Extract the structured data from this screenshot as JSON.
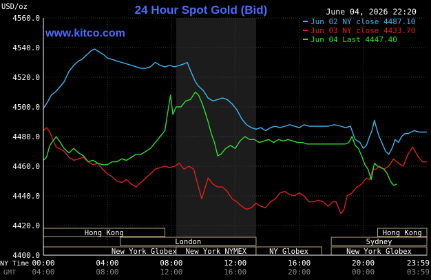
{
  "chart_data": {
    "type": "line",
    "title": "24 Hour Spot Gold (Bid)",
    "watermark": "www.kitco.com",
    "timestamp": "June 04, 2026 22:20",
    "ylabel": "USD/oz",
    "ylim": [
      4400,
      4560
    ],
    "y_ticks": [
      "4560.0",
      "4540.0",
      "4520.0",
      "4500.0",
      "4480.0",
      "4460.0",
      "4440.0",
      "4420.0",
      "4400.0"
    ],
    "x_ticks_ny": [
      "00:00",
      "04:00",
      "08:00",
      "12:00",
      "16:00",
      "20:00",
      "23:59"
    ],
    "x_ticks_gmt": [
      "04:00",
      "08:00",
      "12:00",
      "16:00",
      "20:00",
      "00:00",
      "03:59"
    ],
    "row_label_ny": "NY Time",
    "row_label_gmt": "GMT",
    "legend_placement": "top-right",
    "colors": {
      "background": "#000000",
      "grid": "#3a3a3a",
      "axis": "#ffffff",
      "title": "#4a6cff",
      "session_shade": "#1c1c1c"
    },
    "series": [
      {
        "name": "Jun 02 NY close",
        "legend_value": "4487.10",
        "color": "#3fb6ee",
        "points": [
          [
            0,
            4499
          ],
          [
            0.25,
            4503
          ],
          [
            0.5,
            4508
          ],
          [
            0.75,
            4510
          ],
          [
            1,
            4513
          ],
          [
            1.3,
            4517
          ],
          [
            1.6,
            4524
          ],
          [
            1.9,
            4528
          ],
          [
            2.2,
            4531
          ],
          [
            2.4,
            4532
          ],
          [
            2.7,
            4535
          ],
          [
            3.0,
            4538
          ],
          [
            3.2,
            4539
          ],
          [
            3.5,
            4537
          ],
          [
            3.8,
            4535
          ],
          [
            4.0,
            4533
          ],
          [
            4.3,
            4532
          ],
          [
            4.6,
            4531
          ],
          [
            4.9,
            4530
          ],
          [
            5.2,
            4529
          ],
          [
            5.5,
            4528
          ],
          [
            5.8,
            4527
          ],
          [
            6.1,
            4526
          ],
          [
            6.4,
            4526
          ],
          [
            6.7,
            4527
          ],
          [
            7.0,
            4530
          ],
          [
            7.3,
            4528
          ],
          [
            7.6,
            4527
          ],
          [
            7.9,
            4528
          ],
          [
            8.2,
            4527
          ],
          [
            8.5,
            4528
          ],
          [
            8.8,
            4529
          ],
          [
            9.0,
            4530
          ],
          [
            9.1,
            4527
          ],
          [
            9.3,
            4522
          ],
          [
            9.5,
            4517
          ],
          [
            9.7,
            4514
          ],
          [
            10.0,
            4511
          ],
          [
            10.3,
            4506
          ],
          [
            10.6,
            4504
          ],
          [
            10.9,
            4505
          ],
          [
            11.2,
            4506
          ],
          [
            11.5,
            4505
          ],
          [
            11.8,
            4502
          ],
          [
            12.1,
            4498
          ],
          [
            12.4,
            4492
          ],
          [
            12.7,
            4488
          ],
          [
            13.0,
            4486
          ],
          [
            13.3,
            4485
          ],
          [
            13.6,
            4486
          ],
          [
            13.9,
            4484
          ],
          [
            14.2,
            4486
          ],
          [
            14.5,
            4487
          ],
          [
            14.8,
            4486
          ],
          [
            15.1,
            4487
          ],
          [
            15.4,
            4488
          ],
          [
            15.7,
            4487
          ],
          [
            16.0,
            4486
          ],
          [
            16.3,
            4488
          ],
          [
            16.6,
            4487
          ],
          [
            17.0,
            4487
          ],
          [
            17.4,
            4487
          ],
          [
            17.8,
            4487
          ],
          [
            18.2,
            4488
          ],
          [
            18.6,
            4487
          ],
          [
            18.9,
            4486
          ],
          [
            19.2,
            4487
          ],
          [
            19.5,
            4478
          ],
          [
            19.8,
            4476
          ],
          [
            20.0,
            4472
          ],
          [
            20.2,
            4474
          ],
          [
            20.4,
            4480
          ],
          [
            20.55,
            4484
          ],
          [
            20.7,
            4491
          ],
          [
            20.85,
            4485
          ],
          [
            21.0,
            4480
          ],
          [
            21.2,
            4475
          ],
          [
            21.4,
            4470
          ],
          [
            21.6,
            4468
          ],
          [
            21.8,
            4472
          ],
          [
            22.0,
            4478
          ],
          [
            22.2,
            4476
          ],
          [
            22.4,
            4480
          ],
          [
            22.6,
            4482
          ],
          [
            22.8,
            4482
          ],
          [
            23.0,
            4483
          ],
          [
            23.2,
            4484
          ],
          [
            23.5,
            4483
          ],
          [
            23.98,
            4483
          ]
        ]
      },
      {
        "name": "Jun 03 NY close",
        "legend_value": "4433.70",
        "color": "#e0201c",
        "points": [
          [
            0,
            4484
          ],
          [
            0.2,
            4486
          ],
          [
            0.4,
            4483
          ],
          [
            0.6,
            4478
          ],
          [
            0.8,
            4473
          ],
          [
            1.0,
            4472
          ],
          [
            1.3,
            4470
          ],
          [
            1.6,
            4466
          ],
          [
            1.9,
            4464
          ],
          [
            2.2,
            4465
          ],
          [
            2.5,
            4466
          ],
          [
            2.8,
            4463
          ],
          [
            3.1,
            4461
          ],
          [
            3.4,
            4462
          ],
          [
            3.7,
            4458
          ],
          [
            4.0,
            4455
          ],
          [
            4.3,
            4453
          ],
          [
            4.6,
            4450
          ],
          [
            4.9,
            4449
          ],
          [
            5.2,
            4451
          ],
          [
            5.5,
            4448
          ],
          [
            5.8,
            4446
          ],
          [
            6.1,
            4449
          ],
          [
            6.4,
            4452
          ],
          [
            6.7,
            4455
          ],
          [
            7.0,
            4458
          ],
          [
            7.3,
            4459
          ],
          [
            7.6,
            4460
          ],
          [
            7.9,
            4459
          ],
          [
            8.2,
            4460
          ],
          [
            8.5,
            4462
          ],
          [
            8.8,
            4458
          ],
          [
            9.1,
            4460
          ],
          [
            9.4,
            4458
          ],
          [
            9.7,
            4446
          ],
          [
            9.9,
            4438
          ],
          [
            10.1,
            4445
          ],
          [
            10.3,
            4452
          ],
          [
            10.6,
            4448
          ],
          [
            10.9,
            4446
          ],
          [
            11.2,
            4446
          ],
          [
            11.5,
            4443
          ],
          [
            11.8,
            4438
          ],
          [
            12.1,
            4436
          ],
          [
            12.4,
            4433
          ],
          [
            12.7,
            4431
          ],
          [
            13.0,
            4432
          ],
          [
            13.3,
            4435
          ],
          [
            13.6,
            4433
          ],
          [
            13.9,
            4432
          ],
          [
            14.2,
            4436
          ],
          [
            14.5,
            4438
          ],
          [
            14.8,
            4442
          ],
          [
            15.1,
            4443
          ],
          [
            15.4,
            4441
          ],
          [
            15.7,
            4440
          ],
          [
            16.0,
            4442
          ],
          [
            16.3,
            4440
          ],
          [
            16.6,
            4436
          ],
          [
            16.9,
            4436
          ],
          [
            17.2,
            4437
          ],
          [
            17.5,
            4436
          ],
          [
            17.8,
            4433
          ],
          [
            18.1,
            4436
          ],
          [
            18.3,
            4436
          ],
          [
            18.6,
            4428
          ],
          [
            18.8,
            4431
          ],
          [
            19.0,
            4440
          ],
          [
            19.3,
            4442
          ],
          [
            19.6,
            4446
          ],
          [
            19.9,
            4448
          ],
          [
            20.2,
            4452
          ],
          [
            20.4,
            4451
          ],
          [
            20.6,
            4458
          ],
          [
            20.8,
            4458
          ],
          [
            21.0,
            4460
          ],
          [
            21.3,
            4458
          ],
          [
            21.6,
            4460
          ],
          [
            21.9,
            4465
          ],
          [
            22.2,
            4462
          ],
          [
            22.5,
            4460
          ],
          [
            22.8,
            4468
          ],
          [
            23.1,
            4473
          ],
          [
            23.4,
            4467
          ],
          [
            23.7,
            4463
          ],
          [
            23.98,
            4463
          ]
        ]
      },
      {
        "name": "Jun 04 Last",
        "legend_value": "4447.40",
        "color": "#2ee02e",
        "points": [
          [
            0,
            4464
          ],
          [
            0.2,
            4466
          ],
          [
            0.4,
            4474
          ],
          [
            0.6,
            4477
          ],
          [
            0.8,
            4480
          ],
          [
            1.0,
            4477
          ],
          [
            1.3,
            4472
          ],
          [
            1.6,
            4469
          ],
          [
            1.9,
            4472
          ],
          [
            2.2,
            4469
          ],
          [
            2.5,
            4467
          ],
          [
            2.8,
            4463
          ],
          [
            3.1,
            4464
          ],
          [
            3.4,
            4462
          ],
          [
            3.7,
            4461
          ],
          [
            4.0,
            4461
          ],
          [
            4.3,
            4463
          ],
          [
            4.6,
            4463
          ],
          [
            4.9,
            4465
          ],
          [
            5.2,
            4464
          ],
          [
            5.5,
            4466
          ],
          [
            5.8,
            4468
          ],
          [
            6.1,
            4468
          ],
          [
            6.4,
            4470
          ],
          [
            6.7,
            4472
          ],
          [
            7.0,
            4476
          ],
          [
            7.3,
            4480
          ],
          [
            7.6,
            4484
          ],
          [
            7.8,
            4498
          ],
          [
            7.95,
            4508
          ],
          [
            8.1,
            4495
          ],
          [
            8.3,
            4500
          ],
          [
            8.6,
            4500
          ],
          [
            8.9,
            4504
          ],
          [
            9.2,
            4505
          ],
          [
            9.5,
            4510
          ],
          [
            9.7,
            4508
          ],
          [
            9.9,
            4503
          ],
          [
            10.1,
            4497
          ],
          [
            10.3,
            4490
          ],
          [
            10.5,
            4482
          ],
          [
            10.7,
            4476
          ],
          [
            10.9,
            4467
          ],
          [
            11.1,
            4468
          ],
          [
            11.4,
            4472
          ],
          [
            11.7,
            4474
          ],
          [
            12.0,
            4472
          ],
          [
            12.3,
            4477
          ],
          [
            12.6,
            4480
          ],
          [
            12.9,
            4478
          ],
          [
            13.2,
            4478
          ],
          [
            13.5,
            4476
          ],
          [
            13.8,
            4477
          ],
          [
            14.1,
            4478
          ],
          [
            14.4,
            4476
          ],
          [
            14.7,
            4478
          ],
          [
            15.0,
            4477
          ],
          [
            15.3,
            4478
          ],
          [
            15.6,
            4477
          ],
          [
            15.9,
            4476
          ],
          [
            16.2,
            4476
          ],
          [
            16.5,
            4475
          ],
          [
            16.8,
            4475
          ],
          [
            17.1,
            4475
          ],
          [
            17.4,
            4475
          ],
          [
            17.7,
            4475
          ],
          [
            18.0,
            4475
          ],
          [
            18.3,
            4475
          ],
          [
            18.6,
            4475
          ],
          [
            18.9,
            4475
          ],
          [
            19.1,
            4476
          ],
          [
            19.3,
            4480
          ],
          [
            19.5,
            4474
          ],
          [
            19.7,
            4472
          ],
          [
            19.9,
            4467
          ],
          [
            20.1,
            4461
          ],
          [
            20.3,
            4458
          ],
          [
            20.5,
            4451
          ],
          [
            20.7,
            4462
          ],
          [
            20.9,
            4460
          ],
          [
            21.1,
            4459
          ],
          [
            21.3,
            4458
          ],
          [
            21.5,
            4455
          ],
          [
            21.7,
            4450
          ],
          [
            21.9,
            4447
          ],
          [
            22.1,
            4448
          ]
        ]
      }
    ],
    "sessions": [
      {
        "label": "Hong Kong",
        "start": 0,
        "end": 7.6,
        "row": 0
      },
      {
        "label": "London",
        "start": 4.8,
        "end": 13.3,
        "row": 2
      },
      {
        "label": "New York Globex",
        "start": 0,
        "end": 12.6,
        "row": 3
      },
      {
        "label": "New York NYMEX",
        "start": 8.3,
        "end": 13.3,
        "row": 3
      },
      {
        "label": "NY Globex",
        "start": 13.3,
        "end": 17.4,
        "row": 3
      },
      {
        "label": "Hong Kong",
        "start": 20.9,
        "end": 23.98,
        "row": 0
      },
      {
        "label": "Sydney",
        "start": 18.0,
        "end": 23.98,
        "row": 2
      },
      {
        "label": "New York Globex",
        "start": 18.0,
        "end": 23.98,
        "row": 3
      }
    ],
    "shaded_session": {
      "start": 8.3,
      "end": 13.3
    }
  }
}
